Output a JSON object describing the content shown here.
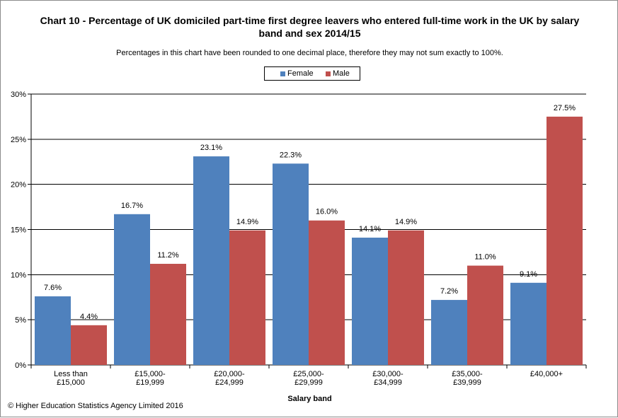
{
  "colors": {
    "female": "#4f81bd",
    "male": "#c0504d",
    "grid": "#000000"
  },
  "chart_data": {
    "type": "bar",
    "title": "Chart 10 - Percentage of UK domiciled part-time first  degree leavers who entered full-time work in the UK by salary band and sex 2014/15",
    "subtitle": "Percentages in this chart have been rounded to one decimal place, therefore they may not sum exactly to 100%.",
    "xlabel": "Salary band",
    "ylabel": "",
    "ylim": [
      0,
      30
    ],
    "yticks": [
      0,
      5,
      10,
      15,
      20,
      25,
      30
    ],
    "ytick_labels": [
      "0%",
      "5%",
      "10%",
      "15%",
      "20%",
      "25%",
      "30%"
    ],
    "grid": true,
    "legend_position": "top-center",
    "categories": [
      [
        "Less than",
        "£15,000"
      ],
      [
        "£15,000-",
        "£19,999"
      ],
      [
        "£20,000-",
        "£24,999"
      ],
      [
        "£25,000-",
        "£29,999"
      ],
      [
        "£30,000-",
        "£34,999"
      ],
      [
        "£35,000-",
        "£39,999"
      ],
      [
        "£40,000+"
      ]
    ],
    "series": [
      {
        "name": "Female",
        "values": [
          7.6,
          16.7,
          23.1,
          22.3,
          14.1,
          7.2,
          9.1
        ],
        "labels": [
          "7.6%",
          "16.7%",
          "23.1%",
          "22.3%",
          "14.1%",
          "7.2%",
          "9.1%"
        ]
      },
      {
        "name": "Male",
        "values": [
          4.4,
          11.2,
          14.9,
          16.0,
          14.9,
          11.0,
          27.5
        ],
        "labels": [
          "4.4%",
          "11.2%",
          "14.9%",
          "16.0%",
          "14.9%",
          "11.0%",
          "27.5%"
        ]
      }
    ]
  },
  "footer": {
    "copyright": "© Higher Education Statistics Agency Limited 2016"
  }
}
